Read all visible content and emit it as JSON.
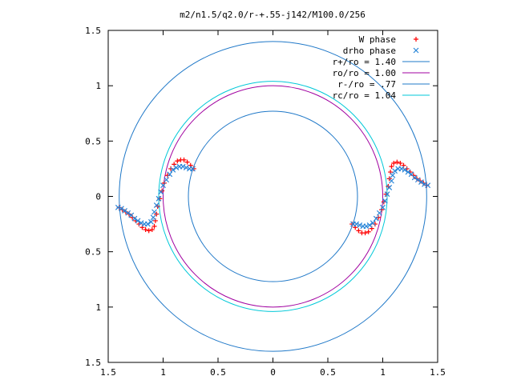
{
  "chart_data": {
    "type": "scatter",
    "title": "m2/n1.5/q2.0/r-+.55-j142/M100.0/256",
    "xlabel": "",
    "ylabel": "",
    "xlim": [
      -1.5,
      1.5
    ],
    "ylim": [
      -1.5,
      1.5
    ],
    "xticks": [
      "1.5",
      "1",
      "0.5",
      "0",
      "0.5",
      "1",
      "1.5"
    ],
    "xtick_values": [
      -1.5,
      -1.0,
      -0.5,
      0.0,
      0.5,
      1.0,
      1.5
    ],
    "yticks": [
      "1.5",
      "1",
      "0.5",
      "0",
      "0.5",
      "1",
      "1.5"
    ],
    "ytick_values": [
      1.5,
      1.0,
      0.5,
      0.0,
      -0.5,
      -1.0,
      -1.5
    ],
    "grid": false,
    "legend_position": "top-right",
    "legend": [
      {
        "label": "W phase",
        "color": "#ff0000",
        "marker": "+"
      },
      {
        "label": "drho phase",
        "color": "#2a86d8",
        "marker": "x"
      },
      {
        "label": "r+/ro = 1.40",
        "color": "#1f78c8",
        "marker": "line"
      },
      {
        "label": "ro/ro = 1.00",
        "color": "#a000a0",
        "marker": "line"
      },
      {
        "label": "r-/ro = .77",
        "color": "#1f78c8",
        "marker": "line"
      },
      {
        "label": "rc/ro = 1.04",
        "color": "#00c8d8",
        "marker": "line"
      }
    ],
    "circles": [
      {
        "name": "r+/ro = 1.40",
        "r": 1.4,
        "color": "#1f78c8"
      },
      {
        "name": "ro/ro = 1.00",
        "r": 1.0,
        "color": "#a000a0"
      },
      {
        "name": "r-/ro = .77",
        "r": 0.77,
        "color": "#1f78c8"
      },
      {
        "name": "rc/ro = 1.04",
        "r": 1.04,
        "color": "#00c8d8"
      }
    ],
    "series": [
      {
        "name": "W phase",
        "color": "#ff0000",
        "marker": "+",
        "points": [
          [
            -1.4,
            -0.1
          ],
          [
            -1.37,
            -0.12
          ],
          [
            -1.34,
            -0.14
          ],
          [
            -1.31,
            -0.16
          ],
          [
            -1.28,
            -0.19
          ],
          [
            -1.25,
            -0.22
          ],
          [
            -1.22,
            -0.25
          ],
          [
            -1.19,
            -0.28
          ],
          [
            -1.16,
            -0.3
          ],
          [
            -1.13,
            -0.31
          ],
          [
            -1.1,
            -0.3
          ],
          [
            -1.08,
            -0.27
          ],
          [
            -1.07,
            -0.22
          ],
          [
            -1.06,
            -0.16
          ],
          [
            -1.05,
            -0.09
          ],
          [
            -1.03,
            -0.02
          ],
          [
            -1.01,
            0.05
          ],
          [
            -0.99,
            0.12
          ],
          [
            -0.96,
            0.19
          ],
          [
            -0.93,
            0.25
          ],
          [
            -0.9,
            0.29
          ],
          [
            -0.87,
            0.32
          ],
          [
            -0.84,
            0.33
          ],
          [
            -0.81,
            0.33
          ],
          [
            -0.78,
            0.31
          ],
          [
            -0.75,
            0.28
          ],
          [
            -0.72,
            0.25
          ],
          [
            1.4,
            0.1
          ],
          [
            1.37,
            0.12
          ],
          [
            1.34,
            0.14
          ],
          [
            1.31,
            0.16
          ],
          [
            1.28,
            0.19
          ],
          [
            1.25,
            0.22
          ],
          [
            1.22,
            0.25
          ],
          [
            1.19,
            0.28
          ],
          [
            1.16,
            0.3
          ],
          [
            1.13,
            0.31
          ],
          [
            1.1,
            0.3
          ],
          [
            1.08,
            0.27
          ],
          [
            1.07,
            0.22
          ],
          [
            1.06,
            0.16
          ],
          [
            1.05,
            0.09
          ],
          [
            1.03,
            0.02
          ],
          [
            1.01,
            -0.05
          ],
          [
            0.99,
            -0.12
          ],
          [
            0.96,
            -0.19
          ],
          [
            0.93,
            -0.25
          ],
          [
            0.9,
            -0.29
          ],
          [
            0.87,
            -0.32
          ],
          [
            0.84,
            -0.33
          ],
          [
            0.81,
            -0.33
          ],
          [
            0.78,
            -0.31
          ],
          [
            0.75,
            -0.28
          ],
          [
            0.72,
            -0.25
          ]
        ]
      },
      {
        "name": "drho phase",
        "color": "#2a86d8",
        "marker": "x",
        "points": [
          [
            -1.41,
            -0.1
          ],
          [
            -1.38,
            -0.11
          ],
          [
            -1.35,
            -0.13
          ],
          [
            -1.32,
            -0.15
          ],
          [
            -1.29,
            -0.17
          ],
          [
            -1.26,
            -0.2
          ],
          [
            -1.23,
            -0.22
          ],
          [
            -1.2,
            -0.24
          ],
          [
            -1.17,
            -0.25
          ],
          [
            -1.14,
            -0.25
          ],
          [
            -1.11,
            -0.23
          ],
          [
            -1.09,
            -0.19
          ],
          [
            -1.08,
            -0.14
          ],
          [
            -1.06,
            -0.08
          ],
          [
            -1.04,
            -0.02
          ],
          [
            -1.02,
            0.04
          ],
          [
            -1.0,
            0.1
          ],
          [
            -0.97,
            0.15
          ],
          [
            -0.94,
            0.2
          ],
          [
            -0.91,
            0.24
          ],
          [
            -0.88,
            0.26
          ],
          [
            -0.85,
            0.27
          ],
          [
            -0.82,
            0.27
          ],
          [
            -0.79,
            0.26
          ],
          [
            -0.76,
            0.25
          ],
          [
            -0.73,
            0.25
          ],
          [
            1.41,
            0.1
          ],
          [
            1.38,
            0.11
          ],
          [
            1.35,
            0.13
          ],
          [
            1.32,
            0.15
          ],
          [
            1.29,
            0.17
          ],
          [
            1.26,
            0.2
          ],
          [
            1.23,
            0.22
          ],
          [
            1.2,
            0.24
          ],
          [
            1.17,
            0.25
          ],
          [
            1.14,
            0.25
          ],
          [
            1.11,
            0.23
          ],
          [
            1.09,
            0.19
          ],
          [
            1.08,
            0.14
          ],
          [
            1.06,
            0.08
          ],
          [
            1.04,
            0.02
          ],
          [
            1.02,
            -0.04
          ],
          [
            1.0,
            -0.1
          ],
          [
            0.97,
            -0.15
          ],
          [
            0.94,
            -0.2
          ],
          [
            0.91,
            -0.24
          ],
          [
            0.88,
            -0.26
          ],
          [
            0.85,
            -0.27
          ],
          [
            0.82,
            -0.27
          ],
          [
            0.79,
            -0.26
          ],
          [
            0.76,
            -0.25
          ],
          [
            0.73,
            -0.25
          ]
        ]
      }
    ]
  }
}
